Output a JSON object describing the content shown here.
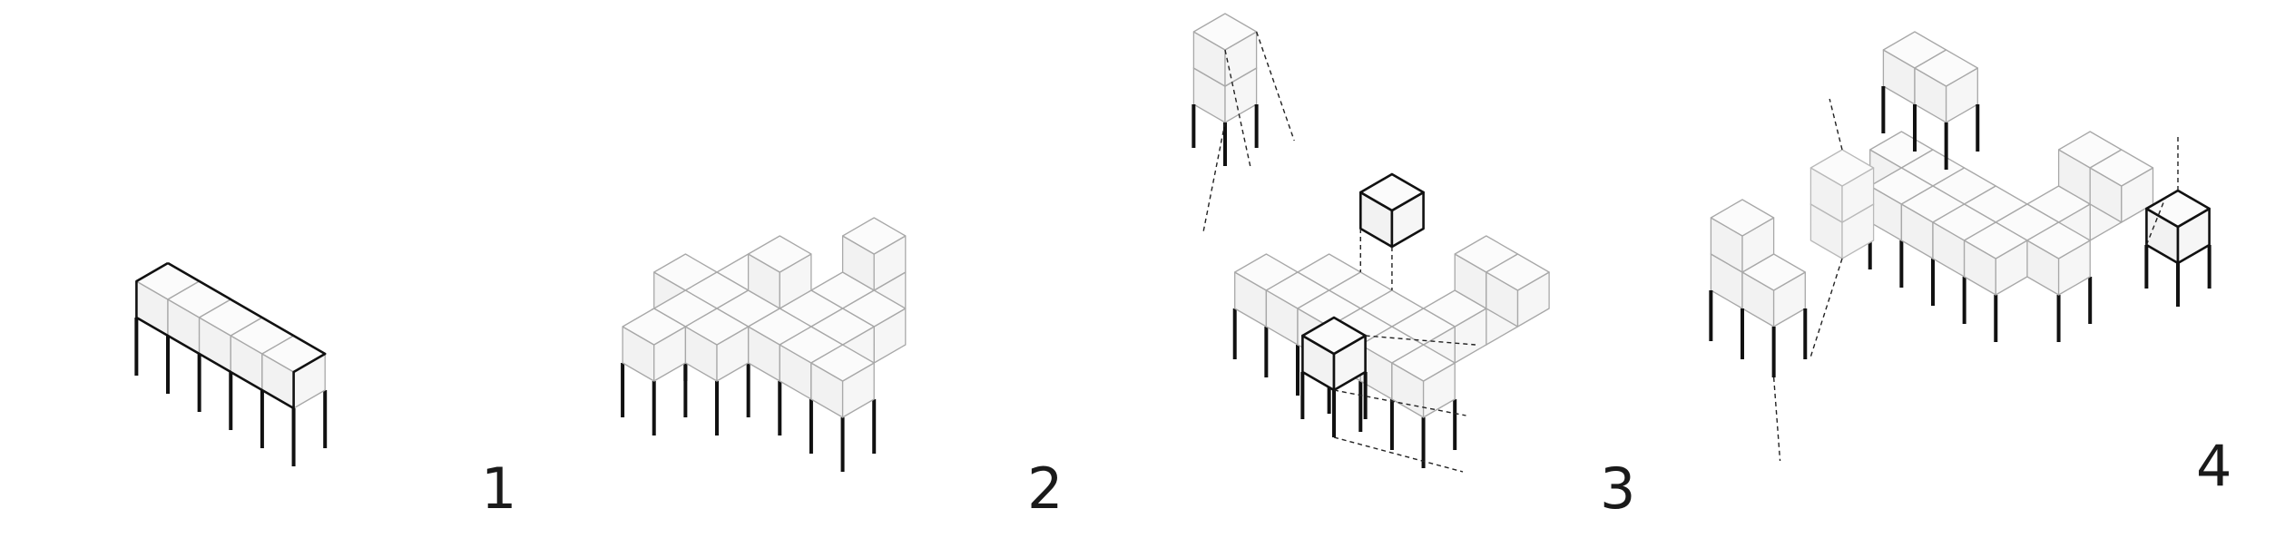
{
  "diagram": {
    "stages": [
      {
        "label": "1"
      },
      {
        "label": "2"
      },
      {
        "label": "3"
      },
      {
        "label": "4"
      }
    ]
  }
}
